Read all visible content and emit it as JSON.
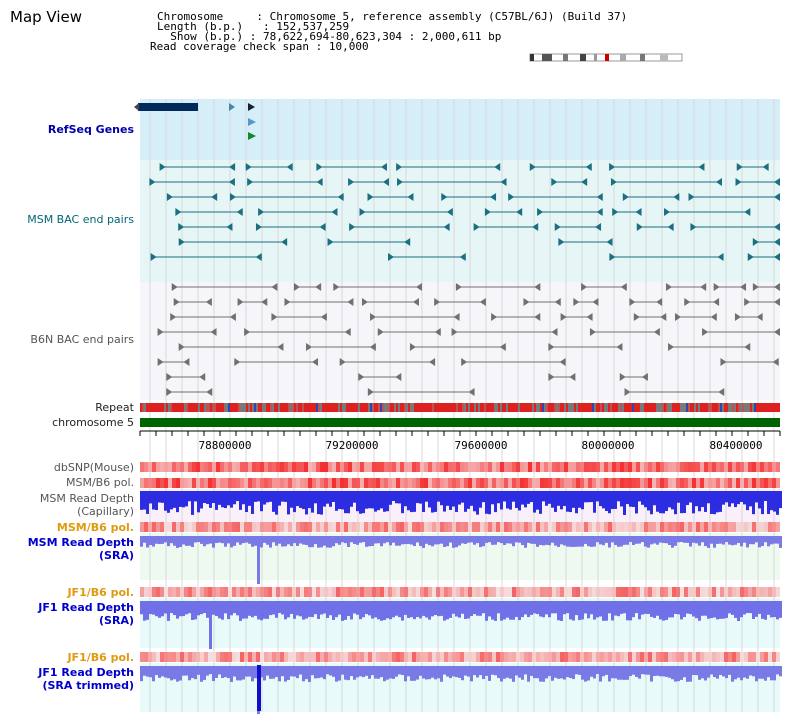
{
  "page": {
    "title": "Map View"
  },
  "header": {
    "chromosome_key": "Chromosome",
    "chromosome_value": "Chromosome 5, reference assembly (C57BL/6J) (Build 37)",
    "length_key": "Length (b.p.)",
    "length_value": "152,537,259",
    "show_key": "Show (b.p.)",
    "show_value": "78,622,694-80,623,304 : 2,000,611 bp",
    "coverage_key": "Read coverage check span",
    "coverage_value": "10,000"
  },
  "tracks": {
    "refseq": "RefSeq Genes",
    "msm_bac": "MSM BAC end pairs",
    "b6n_bac": "B6N BAC end pairs",
    "repeat": "Repeat",
    "chromosome": "chromosome 5",
    "dbsnp": "dbSNP(Mouse)",
    "msm_b6_pol": "MSM/B6 pol.",
    "msm_depth_cap_1": "MSM Read Depth",
    "msm_depth_cap_2": "(Capillary)",
    "msm_b6_pol_2": "MSM/B6 pol.",
    "msm_depth_sra_1": "MSM Read Depth",
    "msm_depth_sra_2": "(SRA)",
    "jf1_b6_pol": "JF1/B6 pol.",
    "jf1_depth_sra_1": "JF1 Read Depth",
    "jf1_depth_sra_2": "(SRA)",
    "jf1_b6_pol_2": "JF1/B6 pol.",
    "jf1_depth_trim_1": "JF1 Read Depth",
    "jf1_depth_trim_2": "(SRA trimmed)"
  },
  "axis": {
    "ticks": [
      "78800000",
      "79200000",
      "79600000",
      "80000000",
      "80400000"
    ]
  },
  "colors": {
    "teal": "#1a6f80",
    "gene_navy": "#002a5c",
    "chrom_green": "#006400",
    "depth_blue": "#2c2ce0",
    "pol_red": "#f07070"
  }
}
